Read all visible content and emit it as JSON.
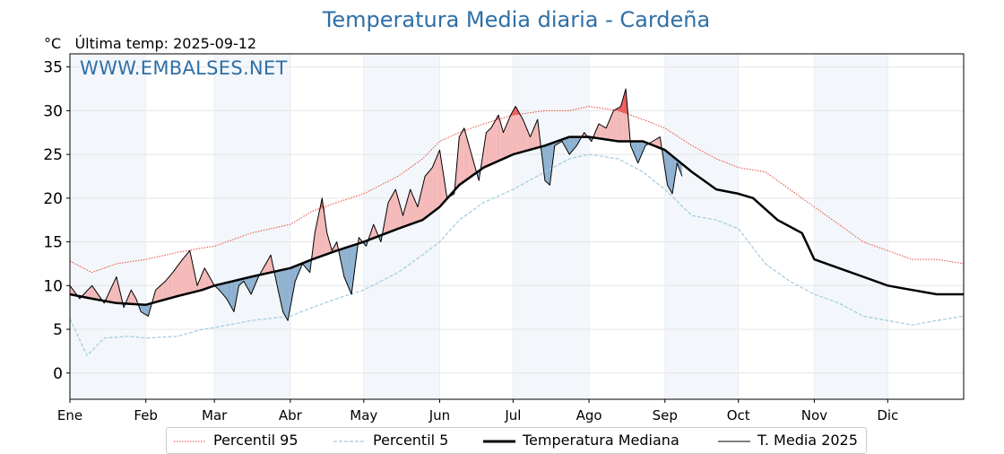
{
  "header": {
    "title": "Temperatura Media diaria - Cardeña",
    "unit": "°C",
    "last_temp": "Última temp: 2025-09-12",
    "watermark": "WWW.EMBALSES.NET"
  },
  "colors": {
    "title": "#2e6fa6",
    "p95": "#e8463c",
    "p5": "#9fcbe0",
    "median": "#000000",
    "year": "#000000",
    "above_fill": "#f4b8b8",
    "above_fill_strong": "#e94b4b",
    "below_fill": "#8db0cf",
    "band": "#f3f7fb"
  },
  "chart_data": {
    "type": "line",
    "title": "Temperatura Media diaria - Cardeña",
    "ylabel": "°C",
    "ylim": [
      -3,
      36.5
    ],
    "xlim": [
      1,
      366
    ],
    "yticks": [
      0,
      5,
      10,
      15,
      20,
      25,
      30,
      35
    ],
    "grid": true,
    "month_ticks": [
      {
        "label": "Ene",
        "day": 1
      },
      {
        "label": "Feb",
        "day": 32
      },
      {
        "label": "Mar",
        "day": 60
      },
      {
        "label": "Abr",
        "day": 91
      },
      {
        "label": "May",
        "day": 121
      },
      {
        "label": "Jun",
        "day": 152
      },
      {
        "label": "Jul",
        "day": 182
      },
      {
        "label": "Ago",
        "day": 213
      },
      {
        "label": "Sep",
        "day": 244
      },
      {
        "label": "Oct",
        "day": 274
      },
      {
        "label": "Nov",
        "day": 305
      },
      {
        "label": "Dic",
        "day": 335
      }
    ],
    "legend_position": "bottom",
    "series": [
      {
        "name": "Percentil 95",
        "style": "dotted-red",
        "points": [
          [
            1,
            12.8
          ],
          [
            10,
            11.5
          ],
          [
            20,
            12.5
          ],
          [
            32,
            13
          ],
          [
            45,
            13.8
          ],
          [
            55,
            14.3
          ],
          [
            60,
            14.5
          ],
          [
            75,
            16
          ],
          [
            91,
            17
          ],
          [
            100,
            18.5
          ],
          [
            110,
            19.5
          ],
          [
            121,
            20.5
          ],
          [
            135,
            22.5
          ],
          [
            145,
            24.5
          ],
          [
            152,
            26.5
          ],
          [
            160,
            27.5
          ],
          [
            170,
            28.5
          ],
          [
            182,
            29.5
          ],
          [
            195,
            30
          ],
          [
            205,
            30
          ],
          [
            213,
            30.5
          ],
          [
            225,
            30
          ],
          [
            235,
            29
          ],
          [
            244,
            28
          ],
          [
            255,
            26
          ],
          [
            265,
            24.5
          ],
          [
            274,
            23.5
          ],
          [
            285,
            23
          ],
          [
            295,
            21
          ],
          [
            305,
            19
          ],
          [
            315,
            17
          ],
          [
            325,
            15
          ],
          [
            335,
            14
          ],
          [
            345,
            13
          ],
          [
            355,
            13
          ],
          [
            366,
            12.5
          ]
        ]
      },
      {
        "name": "Percentil 5",
        "style": "dashed-lightblue",
        "points": [
          [
            1,
            6.2
          ],
          [
            8,
            2
          ],
          [
            15,
            4
          ],
          [
            25,
            4.2
          ],
          [
            32,
            4
          ],
          [
            45,
            4.2
          ],
          [
            55,
            5
          ],
          [
            60,
            5.2
          ],
          [
            75,
            6
          ],
          [
            91,
            6.5
          ],
          [
            100,
            7.5
          ],
          [
            110,
            8.5
          ],
          [
            121,
            9.5
          ],
          [
            135,
            11.5
          ],
          [
            145,
            13.5
          ],
          [
            152,
            15
          ],
          [
            160,
            17.5
          ],
          [
            170,
            19.5
          ],
          [
            182,
            21
          ],
          [
            195,
            23
          ],
          [
            205,
            24.5
          ],
          [
            213,
            25
          ],
          [
            225,
            24.5
          ],
          [
            235,
            23
          ],
          [
            244,
            21
          ],
          [
            255,
            18
          ],
          [
            265,
            17.5
          ],
          [
            274,
            16.5
          ],
          [
            285,
            12.5
          ],
          [
            295,
            10.5
          ],
          [
            305,
            9
          ],
          [
            315,
            8
          ],
          [
            325,
            6.5
          ],
          [
            335,
            6
          ],
          [
            345,
            5.5
          ],
          [
            355,
            6
          ],
          [
            366,
            6.5
          ]
        ]
      },
      {
        "name": "Temperatura Mediana",
        "style": "thick-black",
        "points": [
          [
            1,
            9
          ],
          [
            10,
            8.5
          ],
          [
            20,
            8
          ],
          [
            32,
            7.8
          ],
          [
            45,
            8.8
          ],
          [
            55,
            9.5
          ],
          [
            60,
            10
          ],
          [
            75,
            11
          ],
          [
            91,
            12
          ],
          [
            100,
            13
          ],
          [
            110,
            14
          ],
          [
            121,
            15
          ],
          [
            135,
            16.5
          ],
          [
            145,
            17.5
          ],
          [
            152,
            19
          ],
          [
            160,
            21.5
          ],
          [
            170,
            23.5
          ],
          [
            182,
            25
          ],
          [
            195,
            26
          ],
          [
            205,
            27
          ],
          [
            213,
            27
          ],
          [
            225,
            26.5
          ],
          [
            235,
            26.5
          ],
          [
            244,
            25.5
          ],
          [
            255,
            23
          ],
          [
            265,
            21
          ],
          [
            274,
            20.5
          ],
          [
            280,
            20
          ],
          [
            290,
            17.5
          ],
          [
            300,
            16
          ],
          [
            305,
            13
          ],
          [
            315,
            12
          ],
          [
            325,
            11
          ],
          [
            335,
            10
          ],
          [
            345,
            9.5
          ],
          [
            355,
            9
          ],
          [
            366,
            9
          ]
        ]
      },
      {
        "name": "T. Media 2025",
        "style": "thin-black",
        "points": [
          [
            1,
            10
          ],
          [
            5,
            8.5
          ],
          [
            10,
            10
          ],
          [
            15,
            8
          ],
          [
            20,
            11
          ],
          [
            23,
            7.5
          ],
          [
            26,
            9.5
          ],
          [
            28,
            8.5
          ],
          [
            30,
            7
          ],
          [
            33,
            6.5
          ],
          [
            36,
            9.5
          ],
          [
            40,
            10.5
          ],
          [
            43,
            11.5
          ],
          [
            47,
            13
          ],
          [
            50,
            14
          ],
          [
            53,
            10
          ],
          [
            56,
            12
          ],
          [
            60,
            10
          ],
          [
            62,
            9.5
          ],
          [
            65,
            8.5
          ],
          [
            68,
            7
          ],
          [
            70,
            10
          ],
          [
            72,
            10.5
          ],
          [
            75,
            9
          ],
          [
            78,
            11
          ],
          [
            80,
            12
          ],
          [
            83,
            13.5
          ],
          [
            86,
            9.5
          ],
          [
            88,
            7
          ],
          [
            90,
            6
          ],
          [
            93,
            10.5
          ],
          [
            96,
            12.5
          ],
          [
            99,
            11.5
          ],
          [
            101,
            16
          ],
          [
            104,
            20
          ],
          [
            106,
            16
          ],
          [
            108,
            14
          ],
          [
            110,
            15
          ],
          [
            113,
            11
          ],
          [
            116,
            9
          ],
          [
            119,
            15.5
          ],
          [
            122,
            14.5
          ],
          [
            125,
            17
          ],
          [
            128,
            15
          ],
          [
            131,
            19.5
          ],
          [
            134,
            21
          ],
          [
            137,
            18
          ],
          [
            140,
            21
          ],
          [
            143,
            19
          ],
          [
            146,
            22.5
          ],
          [
            149,
            23.5
          ],
          [
            152,
            25.5
          ],
          [
            155,
            20
          ],
          [
            158,
            20.5
          ],
          [
            160,
            27
          ],
          [
            162,
            28
          ],
          [
            165,
            25
          ],
          [
            168,
            22
          ],
          [
            171,
            27.5
          ],
          [
            173,
            28
          ],
          [
            176,
            29.5
          ],
          [
            178,
            27.5
          ],
          [
            181,
            29.5
          ],
          [
            183,
            30.5
          ],
          [
            186,
            29
          ],
          [
            189,
            27
          ],
          [
            192,
            29
          ],
          [
            195,
            22
          ],
          [
            197,
            21.5
          ],
          [
            199,
            26
          ],
          [
            202,
            26.5
          ],
          [
            205,
            25
          ],
          [
            208,
            26
          ],
          [
            211,
            27.5
          ],
          [
            214,
            26.5
          ],
          [
            217,
            28.5
          ],
          [
            220,
            28
          ],
          [
            223,
            30
          ],
          [
            226,
            30.5
          ],
          [
            228,
            32.5
          ],
          [
            230,
            26
          ],
          [
            233,
            24
          ],
          [
            236,
            26
          ],
          [
            239,
            26.5
          ],
          [
            242,
            27
          ],
          [
            245,
            21.5
          ],
          [
            247,
            20.5
          ],
          [
            249,
            24
          ],
          [
            251,
            22.5
          ]
        ]
      }
    ]
  },
  "legend": [
    {
      "label": "Percentil 95"
    },
    {
      "label": "Percentil 5"
    },
    {
      "label": "Temperatura Mediana"
    },
    {
      "label": "T. Media 2025"
    }
  ]
}
